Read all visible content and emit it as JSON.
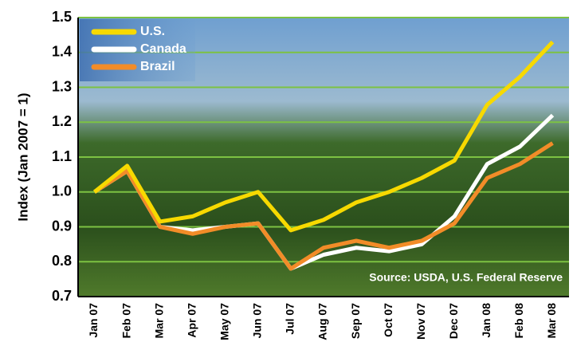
{
  "chart_data": {
    "type": "line",
    "y_label": "Index (Jan 2007 = 1)",
    "annotation": "Source: USDA, U.S. Federal Reserve",
    "categories": [
      "Jan 07",
      "Feb 07",
      "Mar 07",
      "Apr 07",
      "May 07",
      "Jun 07",
      "Jul 07",
      "Aug 07",
      "Sep 07",
      "Oct 07",
      "Nov 07",
      "Dec 07",
      "Jan 08",
      "Feb 08",
      "Mar 08"
    ],
    "series": [
      {
        "name": "U.S.",
        "color": "#f7d900",
        "values": [
          1.0,
          1.075,
          0.915,
          0.93,
          0.97,
          1.0,
          0.89,
          0.92,
          0.97,
          1.0,
          1.04,
          1.09,
          1.25,
          1.33,
          1.43
        ]
      },
      {
        "name": "Canada",
        "color": "#ffffff",
        "values": [
          1.0,
          1.06,
          0.9,
          0.89,
          0.9,
          0.91,
          0.78,
          0.82,
          0.84,
          0.83,
          0.85,
          0.93,
          1.08,
          1.13,
          1.22
        ]
      },
      {
        "name": "Brazil",
        "color": "#f28c28",
        "values": [
          1.0,
          1.06,
          0.9,
          0.88,
          0.9,
          0.91,
          0.78,
          0.84,
          0.86,
          0.84,
          0.86,
          0.91,
          1.04,
          1.08,
          1.14
        ]
      }
    ],
    "ylim": [
      0.7,
      1.5
    ],
    "yticks": [
      0.7,
      0.8,
      0.9,
      {
        "value": 1,
        "label": "1.0"
      },
      1.1,
      1.2,
      1.3,
      1.4,
      1.5
    ],
    "grid": true,
    "grid_color": "#7dc242",
    "legend": "upper left"
  }
}
